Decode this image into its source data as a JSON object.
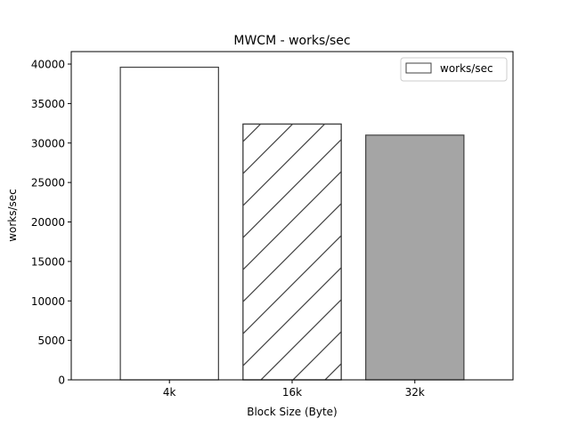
{
  "chart_data": {
    "type": "bar",
    "title": "MWCM - works/sec",
    "xlabel": "Block Size (Byte)",
    "ylabel": "works/sec",
    "categories": [
      "4k",
      "16k",
      "32k"
    ],
    "series": [
      {
        "name": "works/sec",
        "values": [
          39600,
          32400,
          31000
        ]
      }
    ],
    "bar_styles": [
      {
        "fill": "#ffffff",
        "hatch": "none"
      },
      {
        "fill": "#ffffff",
        "hatch": "diagonal"
      },
      {
        "fill": "#a5a5a5",
        "hatch": "none"
      }
    ],
    "ylim": [
      0,
      41580
    ],
    "yticks": [
      0,
      5000,
      10000,
      15000,
      20000,
      25000,
      30000,
      35000,
      40000
    ],
    "grid": false,
    "legend": "top-right"
  }
}
